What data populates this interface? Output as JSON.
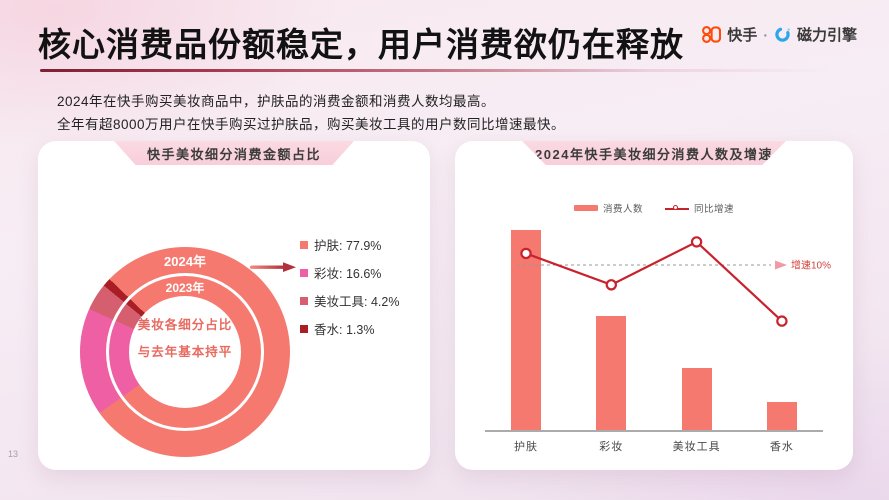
{
  "page": {
    "number": "13",
    "title": "核心消费品份额稳定，用户消费欲仍在释放",
    "subtitle_line1": "2024年在快手购买美妆商品中，护肤品的消费金额和消费人数均最高。",
    "subtitle_line2": "全年有超8000万用户在快手购买过护肤品，购买美妆工具的用户数同比增速最快。"
  },
  "header": {
    "brand_left": "快手",
    "separator": "·",
    "brand_right": "磁力引擎",
    "kuaishou_orange": "#FF4B0A",
    "engine_blue": "#2AA7E8"
  },
  "left_chart": {
    "title": "快手美妆细分消费金额占比",
    "ring_label_outer": "2024年",
    "ring_label_inner": "2023年",
    "center_line1": "美妆各细分占比",
    "center_line2": "与去年基本持平"
  },
  "right_chart": {
    "title": "2024年快手美妆细分消费人数及增速",
    "legend_bar": "消费人数",
    "legend_line": "同比增速",
    "reference_label": "增速10%"
  },
  "colors": {
    "skincare": "#F5796F",
    "makeup": "#EE5FA3",
    "tools": "#D55E6F",
    "perfume": "#A91E25",
    "growth_line": "#C8222D",
    "reference_text": "#D2403C",
    "dashed_gray": "#999999"
  },
  "chart_data": [
    {
      "type": "donut",
      "title": "快手美妆细分消费金额占比",
      "rings": [
        "2024年",
        "2023年"
      ],
      "note": "美妆各细分占比与去年基本持平",
      "categories": [
        "护肤",
        "彩妆",
        "美妆工具",
        "香水"
      ],
      "values": [
        77.9,
        16.6,
        4.2,
        1.3
      ],
      "value_labels": [
        "77.9%",
        "16.6%",
        "4.2%",
        "1.3%"
      ],
      "colors": [
        "#F5796F",
        "#EE5FA3",
        "#D55E6F",
        "#A91E25"
      ],
      "start_angle_deg": 314,
      "legend_position": "right"
    },
    {
      "type": "bar+line",
      "title": "2024年快手美妆细分消费人数及增速",
      "categories": [
        "护肤",
        "彩妆",
        "美妆工具",
        "香水"
      ],
      "series": [
        {
          "name": "消费人数",
          "type": "bar",
          "values_relative_index": [
            100,
            57,
            31,
            14
          ]
        },
        {
          "name": "同比增速",
          "type": "line",
          "values_pct_estimated": [
            10.7,
            8.8,
            11.4,
            6.6
          ]
        }
      ],
      "reference_line": {
        "value_pct": 10,
        "label": "增速10%",
        "style": "dashed"
      },
      "yaxis": "hidden",
      "grid": false,
      "legend_position": "top"
    }
  ]
}
